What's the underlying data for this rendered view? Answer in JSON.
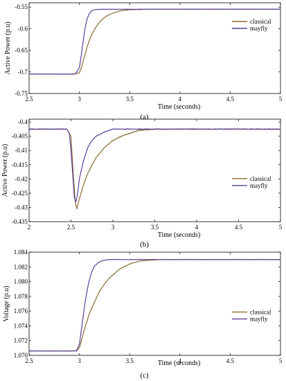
{
  "colors": {
    "classical": "#8b6a2e",
    "mayfly": "#5a3f9a"
  },
  "chart_data": [
    {
      "type": "line",
      "caption": "(a)",
      "xlabel": "Time (seconds)",
      "ylabel": "Active Power (p.u)",
      "xlim": [
        2.5,
        5
      ],
      "ylim": [
        -0.75,
        -0.54
      ],
      "xticks": [
        2.5,
        3,
        3.5,
        4,
        4.5,
        5
      ],
      "xticklabels": [
        "2.5",
        "3",
        "3.5",
        "4",
        "4.5",
        "5"
      ],
      "yticks": [
        -0.75,
        -0.7,
        -0.65,
        -0.6,
        -0.55
      ],
      "yticklabels": [
        "-0.75",
        "-0.7",
        "-0.65",
        "-0.6",
        "-0.55"
      ],
      "legend_position": "top-right",
      "series": [
        {
          "name": "classical",
          "color_key": "classical",
          "x": [
            2.5,
            2.95,
            3.0,
            3.02,
            3.05,
            3.08,
            3.12,
            3.16,
            3.2,
            3.25,
            3.3,
            3.4,
            3.5,
            3.7,
            4.0,
            5.0
          ],
          "y": [
            -0.705,
            -0.705,
            -0.702,
            -0.69,
            -0.665,
            -0.64,
            -0.615,
            -0.598,
            -0.585,
            -0.574,
            -0.567,
            -0.559,
            -0.556,
            -0.555,
            -0.555,
            -0.555
          ]
        },
        {
          "name": "mayfly",
          "color_key": "mayfly",
          "x": [
            2.5,
            2.96,
            3.0,
            3.02,
            3.04,
            3.06,
            3.08,
            3.1,
            3.12,
            3.15,
            3.2,
            3.3,
            5.0
          ],
          "y": [
            -0.705,
            -0.705,
            -0.69,
            -0.66,
            -0.625,
            -0.595,
            -0.575,
            -0.565,
            -0.559,
            -0.556,
            -0.555,
            -0.555,
            -0.555
          ]
        }
      ]
    },
    {
      "type": "line",
      "caption": "(b)",
      "xlabel": "Time (seconds)",
      "ylabel": "Active Power (p.u)",
      "xlim": [
        2,
        5
      ],
      "ylim": [
        -0.435,
        -0.399
      ],
      "xticks": [
        2,
        2.5,
        3,
        3.5,
        4,
        4.5,
        5
      ],
      "xticklabels": [
        "2",
        "2.5",
        "3",
        "3.5",
        "4",
        "4.5",
        "5"
      ],
      "yticks": [
        -0.435,
        -0.43,
        -0.425,
        -0.42,
        -0.415,
        -0.41,
        -0.405,
        -0.4
      ],
      "yticklabels": [
        "-0.435",
        "-0.43",
        "-0.425",
        "-0.42",
        "-0.415",
        "-0.41",
        "-0.405",
        "-0.4"
      ],
      "legend_position": "right",
      "series": [
        {
          "name": "classical",
          "color_key": "classical",
          "x": [
            2.0,
            2.45,
            2.5,
            2.52,
            2.55,
            2.57,
            2.6,
            2.65,
            2.7,
            2.8,
            2.9,
            3.0,
            3.1,
            3.2,
            3.3,
            3.5,
            5.0
          ],
          "y": [
            -0.4025,
            -0.4025,
            -0.405,
            -0.415,
            -0.428,
            -0.4305,
            -0.427,
            -0.422,
            -0.418,
            -0.4125,
            -0.409,
            -0.4065,
            -0.405,
            -0.404,
            -0.403,
            -0.4025,
            -0.4025
          ]
        },
        {
          "name": "mayfly",
          "color_key": "mayfly",
          "x": [
            2.0,
            2.45,
            2.48,
            2.5,
            2.52,
            2.54,
            2.56,
            2.58,
            2.6,
            2.65,
            2.7,
            2.75,
            2.8,
            2.9,
            3.0,
            5.0
          ],
          "y": [
            -0.4025,
            -0.4025,
            -0.404,
            -0.41,
            -0.418,
            -0.4265,
            -0.428,
            -0.425,
            -0.42,
            -0.4135,
            -0.409,
            -0.4065,
            -0.405,
            -0.4035,
            -0.4025,
            -0.4025
          ]
        }
      ]
    },
    {
      "type": "line",
      "caption": "(c)",
      "xlabel": "Time (seconds)",
      "ylabel": "Voltage (p.u)",
      "xlim": [
        2.5,
        5
      ],
      "ylim": [
        1.07,
        1.084
      ],
      "xticks": [
        2.5,
        3,
        3.5,
        4,
        4.5,
        5
      ],
      "xticklabels": [
        "2.5",
        "3",
        "3.5",
        "4",
        "4.5",
        "5"
      ],
      "yticks": [
        1.07,
        1.072,
        1.074,
        1.076,
        1.078,
        1.08,
        1.082,
        1.084
      ],
      "yticklabels": [
        "1.070",
        "1.072",
        "1.074",
        "1.076",
        "1.078",
        "1.080",
        "1.082",
        "1.084"
      ],
      "legend_position": "right",
      "series": [
        {
          "name": "classical",
          "color_key": "classical",
          "x": [
            2.5,
            2.97,
            3.0,
            3.05,
            3.1,
            3.15,
            3.2,
            3.25,
            3.3,
            3.4,
            3.5,
            3.6,
            3.8,
            4.0,
            5.0
          ],
          "y": [
            1.0706,
            1.0706,
            1.071,
            1.0735,
            1.0757,
            1.0772,
            1.0787,
            1.0797,
            1.0805,
            1.0817,
            1.0824,
            1.0828,
            1.083,
            1.083,
            1.083
          ]
        },
        {
          "name": "mayfly",
          "color_key": "mayfly",
          "x": [
            2.5,
            2.97,
            3.0,
            3.03,
            3.06,
            3.09,
            3.12,
            3.15,
            3.2,
            3.25,
            3.3,
            5.0
          ],
          "y": [
            1.0706,
            1.0706,
            1.0715,
            1.0745,
            1.0775,
            1.0797,
            1.0812,
            1.0821,
            1.0827,
            1.0829,
            1.083,
            1.083
          ]
        }
      ]
    }
  ]
}
